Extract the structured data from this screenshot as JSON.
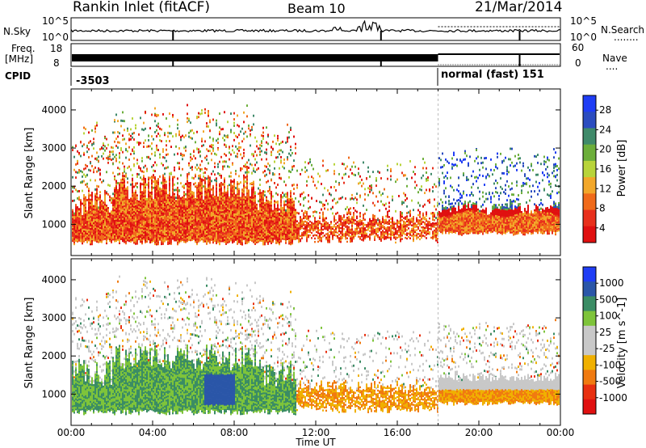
{
  "header": {
    "station": "Rankin Inlet (fitACF)",
    "beam": "Beam 10",
    "date": "21/Mar/2014"
  },
  "summary": {
    "nsky_label": "N.Sky",
    "nsearch_label": "N.Search",
    "nsearch_key": "........",
    "freq_label_1": "Freq.",
    "freq_label_2": "[MHz]",
    "nave_label": "Nave",
    "nave_key": "....",
    "cpid_label": "CPID",
    "noise_left_ticks": [
      "10^5",
      "10^0"
    ],
    "noise_right_ticks": [
      "10^5",
      "10^0"
    ],
    "freq_ticks": [
      "18",
      "8"
    ],
    "nave_ticks": [
      "60",
      "0"
    ],
    "cpid_segments": [
      {
        "value": "-3503",
        "start_hour": 0
      },
      {
        "value": "normal (fast) 151",
        "start_hour": 18
      }
    ]
  },
  "colors": {
    "power_scale": [
      "#1f3df5",
      "#2b4cbf",
      "#3f8a6a",
      "#6cae3a",
      "#b8d43a",
      "#f2a72a",
      "#f06a1a",
      "#e8301c",
      "#e01010"
    ],
    "velocity_scale": [
      "#1f3df5",
      "#2a56a8",
      "#3a8c64",
      "#7ec43a",
      "#c8c8c8",
      "#c8c8c8",
      "#f0b000",
      "#f07a10",
      "#e83010",
      "#e01010"
    ],
    "axis": "#000000",
    "gray_line": "#bdbdbd"
  },
  "chart_data": [
    {
      "type": "heatmap",
      "name": "power",
      "ylabel": "Slant Range [km]",
      "xlabel": "Time UT",
      "xlim": [
        0,
        24
      ],
      "ylim": [
        180,
        4550
      ],
      "yticks": [
        1000,
        2000,
        3000,
        4000
      ],
      "xticks": [
        "00:00",
        "04:00",
        "08:00",
        "12:00",
        "16:00",
        "20:00",
        "00:00"
      ],
      "colorbar": {
        "label": "Power [dB]",
        "ticks": [
          "28",
          "24",
          "20",
          "16",
          "12",
          "8",
          "4"
        ],
        "range": [
          0,
          30
        ]
      }
    },
    {
      "type": "heatmap",
      "name": "velocity",
      "ylabel": "Slant Range [km]",
      "xlabel": "Time UT",
      "xlim": [
        0,
        24
      ],
      "ylim": [
        180,
        4550
      ],
      "yticks": [
        1000,
        2000,
        3000,
        4000
      ],
      "xticks": [
        "00:00",
        "04:00",
        "08:00",
        "12:00",
        "16:00",
        "20:00",
        "00:00"
      ],
      "colorbar": {
        "label": "Velocity [m s^-1]",
        "ticks": [
          "1000",
          "500",
          "100",
          "25",
          "-25",
          "-100",
          "-500",
          "-1000"
        ]
      }
    }
  ]
}
